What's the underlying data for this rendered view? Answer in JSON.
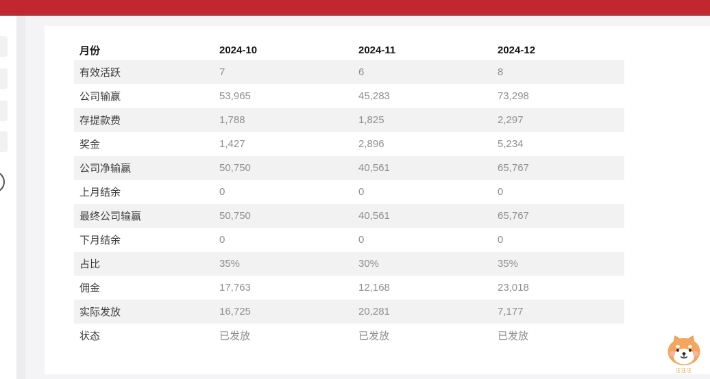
{
  "colors": {
    "topbar": "#c2262f",
    "topbar_edge": "#a8363e",
    "row_stripe": "#f2f2f2",
    "label_text": "#3c3c3c",
    "value_text": "#8e8e8e",
    "mascot_orange": "#f5a55c"
  },
  "sidebar": {
    "collapsed_item_count": 4
  },
  "table": {
    "columns": [
      "月份",
      "2024-10",
      "2024-11",
      "2024-12"
    ],
    "rows": [
      {
        "label": "有效活跃",
        "values": [
          "7",
          "6",
          "8"
        ]
      },
      {
        "label": "公司输赢",
        "values": [
          "53,965",
          "45,283",
          "73,298"
        ]
      },
      {
        "label": "存提款费",
        "values": [
          "1,788",
          "1,825",
          "2,297"
        ]
      },
      {
        "label": "奖金",
        "values": [
          "1,427",
          "2,896",
          "5,234"
        ]
      },
      {
        "label": "公司净输赢",
        "values": [
          "50,750",
          "40,561",
          "65,767"
        ]
      },
      {
        "label": "上月结余",
        "values": [
          "0",
          "0",
          "0"
        ]
      },
      {
        "label": "最终公司输赢",
        "values": [
          "50,750",
          "40,561",
          "65,767"
        ]
      },
      {
        "label": "下月结余",
        "values": [
          "0",
          "0",
          "0"
        ]
      },
      {
        "label": "占比",
        "values": [
          "35%",
          "30%",
          "35%"
        ]
      },
      {
        "label": "佣金",
        "values": [
          "17,763",
          "12,168",
          "23,018"
        ]
      },
      {
        "label": "实际发放",
        "values": [
          "16,725",
          "20,281",
          "7,177"
        ]
      },
      {
        "label": "状态",
        "values": [
          "已发放",
          "已发放",
          "已发放"
        ]
      }
    ]
  },
  "mascot": {
    "caption": "汪汪汪"
  }
}
